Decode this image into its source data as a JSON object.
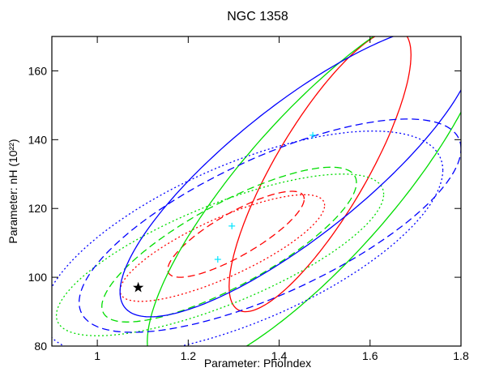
{
  "chart_data": {
    "type": "scatter",
    "title": "NGC 1358",
    "xlabel": "Parameter: PhoIndex",
    "ylabel": "Parameter: nH (10²²)",
    "xlim": [
      0.9,
      1.8
    ],
    "ylim": [
      80,
      170
    ],
    "x_ticks": [
      1,
      1.2,
      1.4,
      1.6,
      1.8
    ],
    "x_tick_labels": [
      "1",
      "1.2",
      "1.4",
      "1.6",
      "1.8"
    ],
    "y_ticks": [
      80,
      100,
      120,
      140,
      160
    ],
    "y_tick_labels": [
      "80",
      "100",
      "120",
      "140",
      "160"
    ],
    "grid": false,
    "colors": {
      "red": "#ff0000",
      "green": "#00dd00",
      "blue": "#0000ff",
      "cyan": "#00e5ff",
      "black": "#000000"
    },
    "contours": [
      {
        "color": "red",
        "style": "solid",
        "cx": 1.49,
        "cy": 131,
        "rx": 0.2,
        "ry": 41,
        "rho": 0.82
      },
      {
        "color": "red",
        "style": "dashed",
        "cx": 1.305,
        "cy": 112.5,
        "rx": 0.15,
        "ry": 12.5,
        "rho": 0.82
      },
      {
        "color": "red",
        "style": "dotted",
        "cx": 1.275,
        "cy": 108.5,
        "rx": 0.225,
        "ry": 15.5,
        "rho": 0.8
      },
      {
        "color": "green",
        "style": "solid",
        "cx": 1.485,
        "cy": 126.5,
        "rx": 0.375,
        "ry": 54.5,
        "rho": 0.83
      },
      {
        "color": "green",
        "style": "dashed",
        "cx": 1.29,
        "cy": 109.5,
        "rx": 0.28,
        "ry": 22.5,
        "rho": 0.8
      },
      {
        "color": "green",
        "style": "dotted",
        "cx": 1.27,
        "cy": 106.5,
        "rx": 0.36,
        "ry": 23.5,
        "rho": 0.75
      },
      {
        "color": "blue",
        "style": "solid",
        "cx": 1.44,
        "cy": 131,
        "rx": 0.39,
        "ry": 42.5,
        "rho": 0.83
      },
      {
        "color": "blue",
        "style": "dashed",
        "cx": 1.38,
        "cy": 115,
        "rx": 0.42,
        "ry": 31,
        "rho": 0.72
      },
      {
        "color": "blue",
        "style": "dotted",
        "cx": 1.32,
        "cy": 110,
        "rx": 0.44,
        "ry": 32.5,
        "rho": 0.65
      }
    ],
    "markers": [
      {
        "color": "cyan",
        "shape": "plus",
        "x": 1.474,
        "y": 141.3
      },
      {
        "color": "cyan",
        "shape": "plus",
        "x": 1.296,
        "y": 114.9
      },
      {
        "color": "cyan",
        "shape": "plus",
        "x": 1.265,
        "y": 105.2
      },
      {
        "color": "black",
        "shape": "star",
        "x": 1.09,
        "y": 97.0
      }
    ]
  }
}
